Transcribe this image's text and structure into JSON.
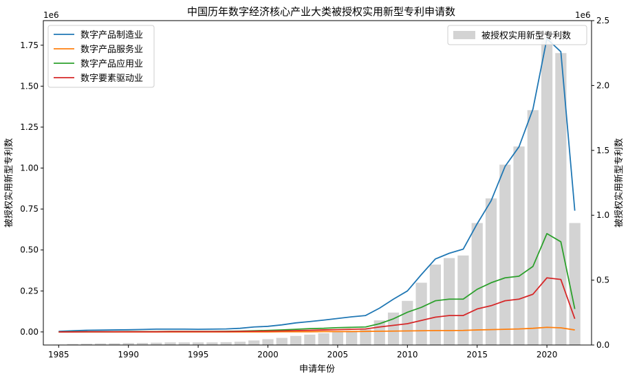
{
  "chart_data": {
    "type": "bar+line",
    "title": "中国历年数字经济核心产业大类被授权实用新型专利申请数",
    "xlabel": "申请年份",
    "ylabel_left": "被授权实用新型专利数",
    "ylabel_right": "被授权实用新型专利数",
    "left_axis": {
      "exponent_label": "1e6",
      "ylim": [
        -0.08,
        1.9
      ],
      "ticks": [
        0,
        0.25,
        0.5,
        0.75,
        1.0,
        1.25,
        1.5,
        1.75
      ],
      "tick_labels": [
        "0.00",
        "0.25",
        "0.50",
        "0.75",
        "1.00",
        "1.25",
        "1.50",
        "1.75"
      ]
    },
    "right_axis": {
      "exponent_label": "1e6",
      "ylim": [
        0,
        2.5
      ],
      "ticks": [
        0,
        0.5,
        1.0,
        1.5,
        2.0,
        2.5
      ],
      "tick_labels": [
        "0.0",
        "0.5",
        "1.0",
        "1.5",
        "2.0",
        "2.5"
      ]
    },
    "xlim": [
      1983.9,
      2023.2
    ],
    "x_ticks": [
      1985,
      1990,
      1995,
      2000,
      2005,
      2010,
      2015,
      2020
    ],
    "x_tick_labels": [
      "1985",
      "1990",
      "1995",
      "2000",
      "2005",
      "2010",
      "2015",
      "2020"
    ],
    "years": [
      1985,
      1986,
      1987,
      1988,
      1989,
      1990,
      1991,
      1992,
      1993,
      1994,
      1995,
      1996,
      1997,
      1998,
      1999,
      2000,
      2001,
      2002,
      2003,
      2004,
      2005,
      2006,
      2007,
      2008,
      2009,
      2010,
      2011,
      2012,
      2013,
      2014,
      2015,
      2016,
      2017,
      2018,
      2019,
      2020,
      2021,
      2022
    ],
    "bar_series": {
      "name": "被授权实用新型专利数",
      "color": "#d3d3d3",
      "axis": "right",
      "values": [
        0.003,
        0.008,
        0.01,
        0.012,
        0.013,
        0.015,
        0.016,
        0.018,
        0.02,
        0.02,
        0.02,
        0.02,
        0.022,
        0.025,
        0.035,
        0.045,
        0.055,
        0.07,
        0.08,
        0.09,
        0.1,
        0.11,
        0.12,
        0.19,
        0.25,
        0.34,
        0.48,
        0.62,
        0.67,
        0.69,
        0.94,
        1.13,
        1.39,
        1.53,
        1.81,
        2.38,
        2.25,
        0.94
      ]
    },
    "line_series": [
      {
        "name": "数字产品制造业",
        "color": "#1f77b4",
        "axis": "left",
        "values": [
          0.003,
          0.007,
          0.01,
          0.011,
          0.012,
          0.013,
          0.015,
          0.017,
          0.017,
          0.017,
          0.016,
          0.017,
          0.018,
          0.022,
          0.03,
          0.034,
          0.043,
          0.055,
          0.063,
          0.072,
          0.082,
          0.092,
          0.1,
          0.145,
          0.2,
          0.25,
          0.35,
          0.445,
          0.48,
          0.505,
          0.66,
          0.8,
          1.01,
          1.13,
          1.36,
          1.79,
          1.71,
          0.74
        ]
      },
      {
        "name": "数字产品服务业",
        "color": "#ff7f0e",
        "axis": "left",
        "values": [
          0.0,
          0.0,
          0.0,
          0.0,
          0.0,
          0.0,
          0.0,
          0.0,
          0.0,
          0.0,
          0.0,
          0.0,
          0.0,
          0.0,
          0.0,
          0.0,
          0.001,
          0.001,
          0.001,
          0.002,
          0.002,
          0.002,
          0.003,
          0.004,
          0.005,
          0.006,
          0.007,
          0.008,
          0.008,
          0.009,
          0.012,
          0.014,
          0.016,
          0.018,
          0.022,
          0.028,
          0.025,
          0.012
        ]
      },
      {
        "name": "数字产品应用业",
        "color": "#2ca02c",
        "axis": "left",
        "values": [
          0.0,
          0.001,
          0.001,
          0.001,
          0.001,
          0.002,
          0.002,
          0.002,
          0.003,
          0.003,
          0.003,
          0.003,
          0.004,
          0.005,
          0.007,
          0.009,
          0.012,
          0.016,
          0.02,
          0.022,
          0.026,
          0.028,
          0.03,
          0.05,
          0.08,
          0.12,
          0.15,
          0.19,
          0.2,
          0.2,
          0.26,
          0.3,
          0.33,
          0.34,
          0.4,
          0.6,
          0.55,
          0.14
        ]
      },
      {
        "name": "数字要素驱动业",
        "color": "#d62728",
        "axis": "left",
        "values": [
          0.0,
          0.0,
          0.001,
          0.001,
          0.001,
          0.001,
          0.001,
          0.001,
          0.002,
          0.002,
          0.002,
          0.002,
          0.002,
          0.003,
          0.004,
          0.005,
          0.006,
          0.008,
          0.01,
          0.012,
          0.014,
          0.016,
          0.018,
          0.03,
          0.04,
          0.05,
          0.07,
          0.09,
          0.1,
          0.1,
          0.14,
          0.16,
          0.19,
          0.2,
          0.23,
          0.33,
          0.32,
          0.08
        ]
      }
    ],
    "legend_lines_position": "upper-left",
    "legend_bar_position": "upper-right",
    "grid": false
  }
}
